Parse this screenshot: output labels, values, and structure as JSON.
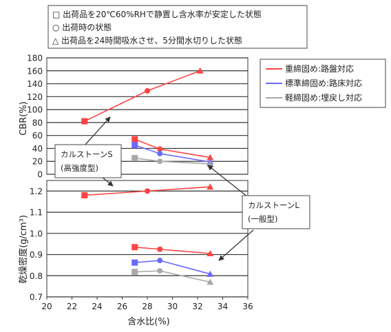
{
  "condition_legend": [
    "□ 出荷品を20℃60%RHで静置し含水率が安定した状態",
    "○ 出荷時の状態",
    "△ 出荷品を24時間吸水させ、5分間水切りした状態"
  ],
  "series_legend": [
    {
      "label": "重締固め:路盤対応",
      "color": "#ff4444"
    },
    {
      "label": "標準締固め:路床対応",
      "color": "#6a6aff"
    },
    {
      "label": "軽締固め:埋戻し対応",
      "color": "#a8a8a8"
    }
  ],
  "callout_s": {
    "line1": "カルストーンS",
    "line2": "(高強度型)"
  },
  "callout_l": {
    "line1": "カルストーンL",
    "line2": "(一般型)"
  },
  "chart_data": [
    {
      "type": "line",
      "panel": "top",
      "ylabel": "CBR(%)",
      "ylim": [
        0,
        180
      ],
      "yticks": [
        0,
        20,
        40,
        60,
        80,
        100,
        120,
        140,
        160,
        180
      ],
      "xlim": [
        20,
        36
      ],
      "series": [
        {
          "name": "重締固め:路盤対応",
          "color": "#ff4444",
          "points": [
            [
              23,
              82,
              "square"
            ],
            [
              28,
              129,
              "circle"
            ],
            [
              32.2,
              160,
              "triangle"
            ]
          ]
        },
        {
          "name": "重締固め:路盤対応",
          "color": "#ff4444",
          "points": [
            [
              27,
              54,
              "square"
            ],
            [
              29,
              39,
              "circle"
            ],
            [
              33,
              26,
              "triangle"
            ]
          ]
        },
        {
          "name": "標準締固め:路床対応",
          "color": "#6a6aff",
          "points": [
            [
              27,
              45,
              "square"
            ],
            [
              29,
              32,
              "circle"
            ],
            [
              33,
              19,
              "triangle"
            ]
          ]
        },
        {
          "name": "軽締固め:埋戻し対応",
          "color": "#a8a8a8",
          "points": [
            [
              27,
              25,
              "square"
            ],
            [
              29,
              20,
              "circle"
            ],
            [
              33,
              16,
              "triangle"
            ]
          ]
        }
      ]
    },
    {
      "type": "line",
      "panel": "bottom",
      "ylabel": "乾燥密度(g/cm³)",
      "xlabel": "含水比(%)",
      "ylim": [
        0.7,
        1.25
      ],
      "yticks": [
        "0.7",
        "0.8",
        "0.9",
        "1.0",
        "1.1",
        "1.2"
      ],
      "xlim": [
        20,
        36
      ],
      "xticks": [
        20,
        22,
        24,
        26,
        28,
        30,
        32,
        34,
        36
      ],
      "series": [
        {
          "name": "重締固め:路盤対応",
          "color": "#ff4444",
          "points": [
            [
              23,
              1.18,
              "square"
            ],
            [
              28,
              1.2,
              "circle"
            ],
            [
              33,
              1.22,
              "triangle"
            ]
          ]
        },
        {
          "name": "重締固め:路盤対応",
          "color": "#ff4444",
          "points": [
            [
              27,
              0.935,
              "square"
            ],
            [
              29,
              0.925,
              "circle"
            ],
            [
              33,
              0.905,
              "triangle"
            ]
          ]
        },
        {
          "name": "標準締固め:路床対応",
          "color": "#6a6aff",
          "points": [
            [
              27,
              0.862,
              "square"
            ],
            [
              29,
              0.872,
              "circle"
            ],
            [
              33,
              0.808,
              "triangle"
            ]
          ]
        },
        {
          "name": "軽締固め:埋戻し対応",
          "color": "#a8a8a8",
          "points": [
            [
              27,
              0.818,
              "square"
            ],
            [
              29,
              0.823,
              "circle"
            ],
            [
              33,
              0.77,
              "triangle"
            ]
          ]
        }
      ]
    }
  ]
}
